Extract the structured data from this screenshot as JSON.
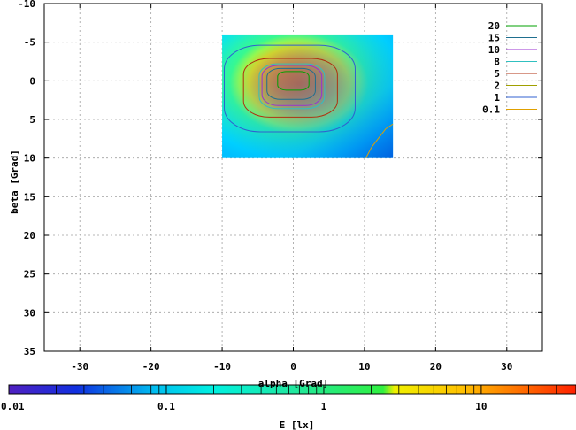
{
  "chart_data": {
    "type": "heatmap",
    "xlabel": "alpha [Grad]",
    "ylabel": "beta [Grad]",
    "colorbar_label": "E [lx]",
    "xlim": [
      -35,
      35
    ],
    "ylim": [
      -10,
      35
    ],
    "y_inverted": true,
    "grid": true,
    "x_ticks": [
      -30,
      -20,
      -10,
      0,
      10,
      20,
      30
    ],
    "x_tick_labels": [
      "-30",
      "-20",
      "-10",
      "0",
      "10",
      "20",
      "30"
    ],
    "y_ticks": [
      -10,
      -5,
      0,
      5,
      10,
      15,
      20,
      25,
      30,
      35
    ],
    "y_tick_labels": [
      "-10",
      "-5",
      "0",
      "5",
      "10",
      "15",
      "20",
      "25",
      "30",
      "35"
    ],
    "data_extent": {
      "alpha": [
        -10,
        14
      ],
      "beta": [
        -6,
        10
      ]
    },
    "colorbar": {
      "scale": "log",
      "range": [
        0.01,
        40
      ],
      "ticks": [
        0.01,
        0.1,
        1,
        10
      ],
      "tick_labels": [
        "0.01",
        "0.1",
        "1",
        "10"
      ]
    },
    "legend_position": "top-right",
    "contours": [
      {
        "name": "20",
        "color": "#00a000"
      },
      {
        "name": "15",
        "color": "#1f6f8f"
      },
      {
        "name": "10",
        "color": "#9b30d0"
      },
      {
        "name": "8",
        "color": "#30c0c0"
      },
      {
        "name": "5",
        "color": "#b03010"
      },
      {
        "name": "2",
        "color": "#a0a000"
      },
      {
        "name": "1",
        "color": "#3060d0"
      },
      {
        "name": "0.1",
        "color": "#e0a000"
      }
    ]
  }
}
